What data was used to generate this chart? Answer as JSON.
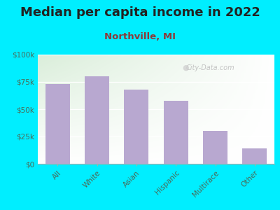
{
  "title": "Median per capita income in 2022",
  "subtitle": "Northville, MI",
  "categories": [
    "All",
    "White",
    "Asian",
    "Hispanic",
    "Multirace",
    "Other"
  ],
  "values": [
    73000,
    80000,
    68000,
    58000,
    30000,
    14000
  ],
  "bar_color": "#b8a8d0",
  "background_outer": "#00eeff",
  "background_inner_topleft": "#daeeda",
  "background_inner_white": "#ffffff",
  "yticks": [
    0,
    25000,
    50000,
    75000,
    100000
  ],
  "ytick_labels": [
    "$0",
    "$25k",
    "$50k",
    "$75k",
    "$100k"
  ],
  "title_fontsize": 13,
  "subtitle_fontsize": 9.5,
  "tick_fontsize": 7.5,
  "watermark": "City-Data.com",
  "title_color": "#222222",
  "subtitle_color": "#8b3a3a",
  "tick_color": "#4a6b5a",
  "grid_color": "#e0e0e0"
}
